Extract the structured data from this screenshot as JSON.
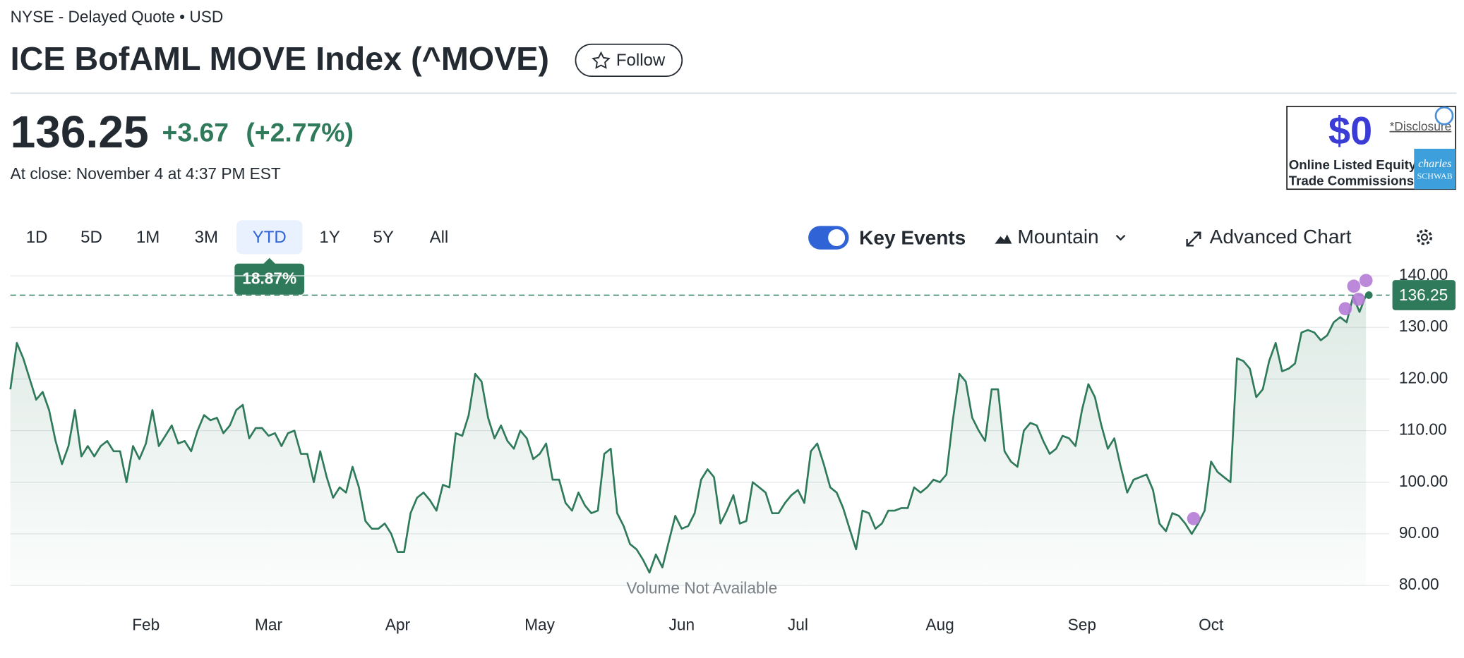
{
  "header": {
    "exchange": "NYSE - Delayed Quote • USD",
    "title": "ICE BofAML MOVE Index (^MOVE)",
    "follow": "Follow"
  },
  "quote": {
    "price": "136.25",
    "change": "+3.67",
    "change_pct": "(+2.77%)",
    "close_time": "At close: November 4 at 4:37 PM EST"
  },
  "ad": {
    "amount": "$0",
    "disclosure": "*Disclosure",
    "line1": "Online Listed Equity",
    "line2": "Trade Commissions.",
    "brand1": "charles",
    "brand2": "SCHWAB"
  },
  "ranges": [
    "1D",
    "5D",
    "1M",
    "3M",
    "YTD",
    "1Y",
    "5Y",
    "All"
  ],
  "range_tooltip": "18.87%",
  "controls": {
    "key_events": "Key Events",
    "chart_type": "Mountain",
    "advanced": "Advanced Chart"
  },
  "chart_data": {
    "type": "line",
    "annotation": "Volume Not Available",
    "series": [
      {
        "name": "^MOVE",
        "color": "#2f7a5a",
        "values": [
          118,
          127,
          124,
          120,
          116,
          117.5,
          114,
          108,
          103.5,
          107,
          114,
          105,
          107,
          105,
          107,
          108,
          106,
          106,
          100,
          107,
          104.5,
          107.5,
          114,
          107,
          109,
          111,
          107.5,
          108,
          106,
          110,
          113,
          112,
          112.5,
          109.5,
          111,
          114,
          115,
          108.5,
          110.5,
          110.5,
          109,
          109.5,
          107,
          109.5,
          110,
          105.5,
          105.5,
          100,
          106,
          101,
          97,
          99,
          98,
          103,
          99,
          92.5,
          91,
          91,
          92,
          90,
          86.5,
          86.5,
          94,
          97,
          98,
          96.5,
          94.5,
          99.5,
          99,
          109.5,
          109,
          113,
          121,
          119.5,
          112.5,
          108.5,
          111,
          108,
          106.5,
          110,
          108.5,
          104.5,
          105.5,
          107.5,
          100.5,
          100.5,
          96,
          94.5,
          98,
          95.5,
          94,
          94.5,
          105.5,
          106.5,
          94,
          91.5,
          88,
          87,
          85,
          82.5,
          86,
          83.5,
          88.5,
          93.5,
          91,
          91.5,
          94,
          100.5,
          102.5,
          101,
          92,
          94.5,
          97.5,
          92,
          92.5,
          100,
          99,
          98,
          94,
          94,
          96,
          97.5,
          98.5,
          96,
          106,
          107.5,
          103.5,
          99,
          98,
          95,
          91,
          87,
          94.5,
          94,
          91,
          92,
          94.5,
          94.5,
          95,
          95,
          99,
          98,
          99,
          100.5,
          100,
          101.5,
          112,
          121,
          119.5,
          112.5,
          110,
          108,
          118,
          118,
          106,
          104,
          103,
          110,
          111.5,
          111,
          108,
          105.5,
          106.5,
          109,
          108.5,
          107,
          114,
          119,
          116.5,
          111,
          106.5,
          108.5,
          103,
          98,
          100.5,
          101,
          101.5,
          98.5,
          92,
          90.5,
          94,
          93.5,
          92,
          90,
          92,
          94.5,
          104,
          102,
          101,
          100,
          124,
          123.5,
          122,
          116.5,
          118,
          123.5,
          127,
          121.5,
          122,
          123,
          129,
          129.5,
          129,
          127.5,
          128.5,
          131,
          132,
          131,
          136,
          133,
          136.25
        ]
      }
    ],
    "last_close": 136.25,
    "xlim": [
      0,
      210
    ],
    "xticks": [
      {
        "value": 21,
        "label": "Feb"
      },
      {
        "value": 40,
        "label": "Mar"
      },
      {
        "value": 60,
        "label": "Apr"
      },
      {
        "value": 82,
        "label": "May"
      },
      {
        "value": 104,
        "label": "Jun"
      },
      {
        "value": 122,
        "label": "Jul"
      },
      {
        "value": 144,
        "label": "Aug"
      },
      {
        "value": 166,
        "label": "Sep"
      },
      {
        "value": 186,
        "label": "Oct"
      }
    ],
    "ylim": [
      80,
      140
    ],
    "yticks": [
      {
        "value": 80,
        "label": "80.00"
      },
      {
        "value": 90,
        "label": "90.00"
      },
      {
        "value": 100,
        "label": "100.00"
      },
      {
        "value": 110,
        "label": "110.00"
      },
      {
        "value": 120,
        "label": "120.00"
      },
      {
        "value": 130,
        "label": "130.00"
      },
      {
        "value": 140,
        "label": "140.00"
      }
    ],
    "grid": true
  }
}
